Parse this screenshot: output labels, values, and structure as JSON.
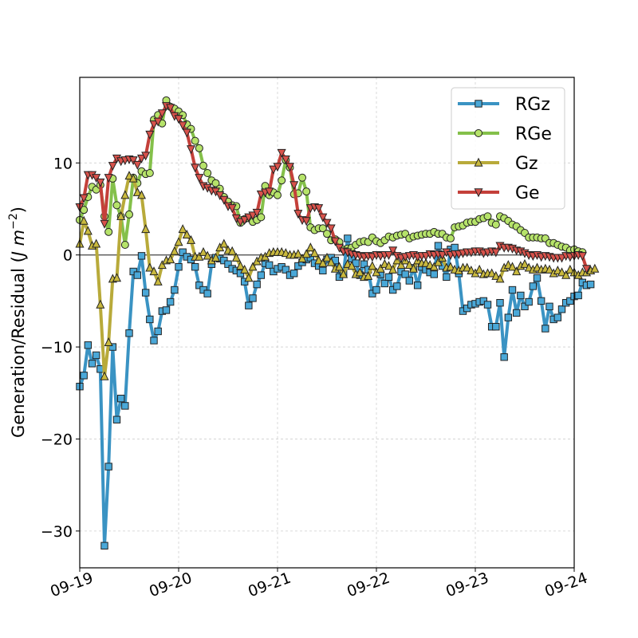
{
  "chart_data": {
    "type": "line",
    "title": "",
    "xlabel": "",
    "ylabel": "Generation/Residual (J m⁻²)",
    "ylabel_main": "Generation/Residual (",
    "ylabel_unit_J": "J",
    "ylabel_unit_m": "m",
    "ylabel_exp": "−2",
    "ylabel_close": ")",
    "xlim": [
      "09-19",
      "09-24"
    ],
    "ylim": [
      -34,
      19.3
    ],
    "x_ticks": [
      "09-19",
      "09-20",
      "09-21",
      "09-22",
      "09-23",
      "09-24"
    ],
    "y_ticks": [
      -30,
      -20,
      -10,
      0,
      10
    ],
    "y_tick_labels": [
      "−30",
      "−20",
      "−10",
      "0",
      "10"
    ],
    "grid": true,
    "zero_line": true,
    "legend_position": "top-right",
    "x_sampling": "hourly, starting 09-19 00:00",
    "series": [
      {
        "name": "RGz",
        "color": "#3a93c3",
        "marker_fill": "#4aa8d8",
        "marker": "square",
        "values": [
          -14.3,
          -13.1,
          -9.8,
          -11.8,
          -10.9,
          -12.4,
          -31.6,
          -23.0,
          -10.0,
          -17.9,
          -15.6,
          -16.4,
          -8.5,
          -1.8,
          -2.2,
          -0.1,
          -4.1,
          -7.0,
          -9.3,
          -8.3,
          -6.1,
          -6.0,
          -5.1,
          -3.8,
          -1.3,
          0.3,
          -0.2,
          -0.5,
          -1.3,
          -3.3,
          -3.8,
          -4.2,
          -1.0,
          -0.3,
          -0.4,
          -0.6,
          -1.0,
          -1.5,
          -1.7,
          -2.0,
          -2.9,
          -5.5,
          -4.7,
          -3.2,
          -2.2,
          -0.9,
          -1.1,
          -1.8,
          -1.5,
          -1.3,
          -1.6,
          -2.2,
          -2.0,
          -1.2,
          -0.8,
          -0.5,
          -0.3,
          -0.9,
          -1.2,
          -1.7,
          -0.5,
          -0.3,
          -0.6,
          -2.4,
          -2.0,
          1.8,
          -0.4,
          -0.9,
          -2.2,
          -1.0,
          -1.6,
          -4.2,
          -3.8,
          -2.1,
          -3.1,
          -2.4,
          -3.8,
          -3.4,
          -1.8,
          -2.1,
          -2.8,
          -1.4,
          -3.3,
          -1.3,
          -1.6,
          -1.9,
          -2.1,
          1.0,
          -1.2,
          -2.4,
          0.6,
          0.8,
          -2.0,
          -6.1,
          -5.8,
          -5.4,
          -5.3,
          -5.1,
          -5.0,
          -5.4,
          -7.8,
          -7.8,
          -5.2,
          -11.1,
          -6.8,
          -3.8,
          -6.3,
          -4.4,
          -5.6,
          -5.1,
          -3.4,
          -2.5,
          -5.0,
          -8.0,
          -5.6,
          -7.0,
          -6.8,
          -5.9,
          -5.2,
          -5.0,
          -4.5,
          -4.4,
          -3.0,
          -3.3,
          -3.2
        ]
      },
      {
        "name": "RGe",
        "color": "#84c04a",
        "marker_fill": "#b6e36a",
        "marker": "circle",
        "values": [
          3.8,
          4.9,
          6.3,
          7.4,
          7.1,
          7.6,
          4.2,
          2.5,
          8.3,
          5.4,
          4.2,
          1.1,
          4.4,
          8.4,
          7.8,
          9.1,
          8.8,
          8.9,
          14.7,
          15.2,
          14.3,
          16.8,
          16.1,
          15.9,
          15.6,
          15.2,
          14.2,
          13.7,
          12.4,
          11.6,
          9.7,
          8.9,
          8.1,
          7.8,
          7.2,
          6.3,
          5.8,
          5.4,
          5.3,
          3.5,
          3.9,
          4.0,
          3.6,
          3.8,
          4.1,
          7.5,
          6.5,
          6.8,
          6.5,
          8.1,
          10.3,
          9.5,
          6.6,
          6.7,
          8.4,
          6.9,
          3.0,
          2.7,
          2.9,
          2.9,
          2.3,
          1.6,
          1.7,
          1.4,
          0.6,
          0.7,
          0.8,
          1.1,
          1.4,
          1.5,
          1.4,
          1.9,
          1.5,
          1.3,
          1.6,
          2.0,
          1.9,
          2.1,
          2.2,
          2.3,
          1.8,
          2.0,
          2.1,
          2.2,
          2.3,
          2.3,
          2.5,
          2.3,
          2.3,
          1.9,
          1.8,
          3.0,
          3.1,
          3.2,
          3.5,
          3.6,
          3.6,
          3.9,
          4.0,
          4.2,
          3.5,
          3.3,
          4.2,
          4.0,
          3.7,
          3.3,
          3.1,
          2.7,
          2.4,
          1.9,
          1.9,
          1.9,
          1.8,
          1.8,
          1.3,
          1.3,
          1.1,
          0.9,
          0.8,
          0.5,
          0.6,
          0.4,
          0.3
        ]
      },
      {
        "name": "Gz",
        "color": "#b8aa3a",
        "marker_fill": "#c9b93e",
        "marker": "triangle-up",
        "values": [
          1.2,
          3.7,
          2.6,
          1.0,
          1.2,
          -5.4,
          -13.2,
          -9.5,
          -2.6,
          -2.5,
          4.2,
          6.5,
          8.6,
          8.3,
          6.8,
          6.5,
          2.8,
          -1.4,
          -1.8,
          -2.9,
          -1.1,
          -0.6,
          -0.5,
          0.4,
          1.4,
          2.8,
          2.2,
          1.6,
          -0.2,
          -0.2,
          0.3,
          -0.1,
          -0.6,
          -0.3,
          0.8,
          1.2,
          0.5,
          0.4,
          -0.3,
          -1.2,
          -1.6,
          -2.5,
          -1.3,
          -0.7,
          -0.3,
          -0.2,
          0.2,
          0.3,
          0.3,
          0.3,
          0.2,
          0.0,
          0.0,
          0.1,
          -0.4,
          0.1,
          0.8,
          0.2,
          -0.6,
          -0.9,
          -0.3,
          -0.8,
          -1.5,
          -1.3,
          -2.1,
          -1.0,
          -1.2,
          -2.1,
          -1.9,
          -2.4,
          -2.3,
          -1.2,
          -1.9,
          -1.5,
          -1.0,
          -1.2,
          -1.6,
          -0.6,
          -1.1,
          -0.6,
          -1.1,
          -1.5,
          -0.6,
          -0.9,
          -0.9,
          -1.1,
          -1.3,
          -0.8,
          -0.3,
          -1.4,
          -1.3,
          -1.6,
          -1.7,
          -1.4,
          -1.4,
          -1.7,
          -2.0,
          -1.6,
          -2.1,
          -2.0,
          -2.0,
          -2.3,
          -2.6,
          -1.4,
          -1.1,
          -1.3,
          -1.8,
          -1.2,
          -1.0,
          -1.4,
          -1.6,
          -1.4,
          -1.6,
          -1.5,
          -1.6,
          -2.0,
          -1.7,
          -1.9,
          -2.2,
          -1.6,
          -1.9,
          -2.2,
          -1.9,
          -1.9,
          -1.7,
          -1.5
        ]
      },
      {
        "name": "Ge",
        "color": "#c4403a",
        "marker_fill": "#d8524b",
        "marker": "triangle-down",
        "values": [
          5.2,
          6.2,
          8.7,
          8.7,
          8.4,
          7.9,
          3.4,
          8.4,
          9.7,
          10.5,
          10.2,
          10.3,
          10.4,
          10.3,
          9.8,
          10.5,
          10.8,
          13.1,
          14.2,
          14.5,
          15.4,
          16.2,
          16.0,
          15.1,
          14.8,
          14.1,
          13.3,
          11.5,
          9.5,
          8.4,
          7.5,
          7.3,
          7.0,
          6.9,
          6.5,
          6.0,
          5.3,
          5.1,
          4.0,
          3.6,
          3.8,
          4.1,
          4.3,
          4.6,
          6.6,
          6.8,
          6.9,
          9.3,
          9.6,
          11.1,
          10.4,
          9.6,
          7.6,
          4.5,
          3.8,
          3.7,
          5.1,
          5.2,
          5.1,
          4.1,
          3.5,
          2.9,
          1.5,
          0.8,
          0.4,
          0.3,
          0.1,
          0.0,
          -0.1,
          -0.2,
          -0.1,
          -0.2,
          0.0,
          -0.1,
          0.0,
          0.0,
          0.5,
          -0.1,
          -0.3,
          -0.2,
          -0.1,
          0.0,
          -0.2,
          -0.1,
          -0.1,
          0.1,
          0.0,
          0.1,
          0.0,
          0.3,
          0.0,
          0.1,
          0.1,
          0.2,
          0.3,
          0.3,
          0.4,
          0.4,
          0.2,
          0.3,
          0.4,
          0.3,
          1.0,
          0.8,
          0.8,
          0.7,
          0.5,
          0.4,
          0.2,
          0.0,
          -0.1,
          0.0,
          -0.2,
          -0.1,
          -0.2,
          -0.3,
          -0.3,
          -0.3,
          -0.1,
          -0.2,
          -0.1,
          0.0,
          -0.1,
          -1.5
        ]
      }
    ]
  }
}
